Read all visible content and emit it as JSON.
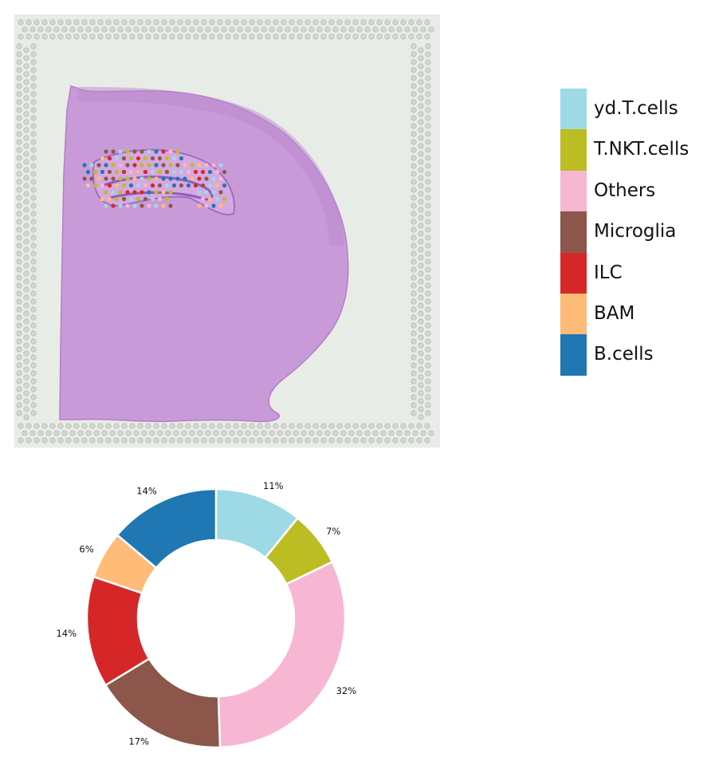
{
  "tissue_image": {
    "description_icon": "he-stained-brain-section-with-spot-overlay"
  },
  "legend": {
    "items": [
      {
        "label": "yd.T.cells",
        "color": "#9edae5"
      },
      {
        "label": "T.NKT.cells",
        "color": "#bcbd22"
      },
      {
        "label": "Others",
        "color": "#f7b6d2"
      },
      {
        "label": "Microglia",
        "color": "#8c564b"
      },
      {
        "label": "ILC",
        "color": "#d62728"
      },
      {
        "label": "BAM",
        "color": "#ffbb78"
      },
      {
        "label": "B.cells",
        "color": "#1f77b4"
      }
    ]
  },
  "chart_data": {
    "type": "pie",
    "donut": true,
    "slices": [
      {
        "label": "yd.T.cells",
        "value": 11,
        "display": "11%",
        "color": "#9edae5"
      },
      {
        "label": "T.NKT.cells",
        "value": 7,
        "display": "7%",
        "color": "#bcbd22"
      },
      {
        "label": "Others",
        "value": 32,
        "display": "32%",
        "color": "#f7b6d2"
      },
      {
        "label": "Microglia",
        "value": 17,
        "display": "17%",
        "color": "#8c564b"
      },
      {
        "label": "ILC",
        "value": 14,
        "display": "14%",
        "color": "#d62728"
      },
      {
        "label": "BAM",
        "value": 6,
        "display": "6%",
        "color": "#ffbb78"
      },
      {
        "label": "B.cells",
        "value": 14,
        "display": "14%",
        "color": "#1f77b4"
      }
    ],
    "start": "top",
    "direction": "clockwise"
  }
}
